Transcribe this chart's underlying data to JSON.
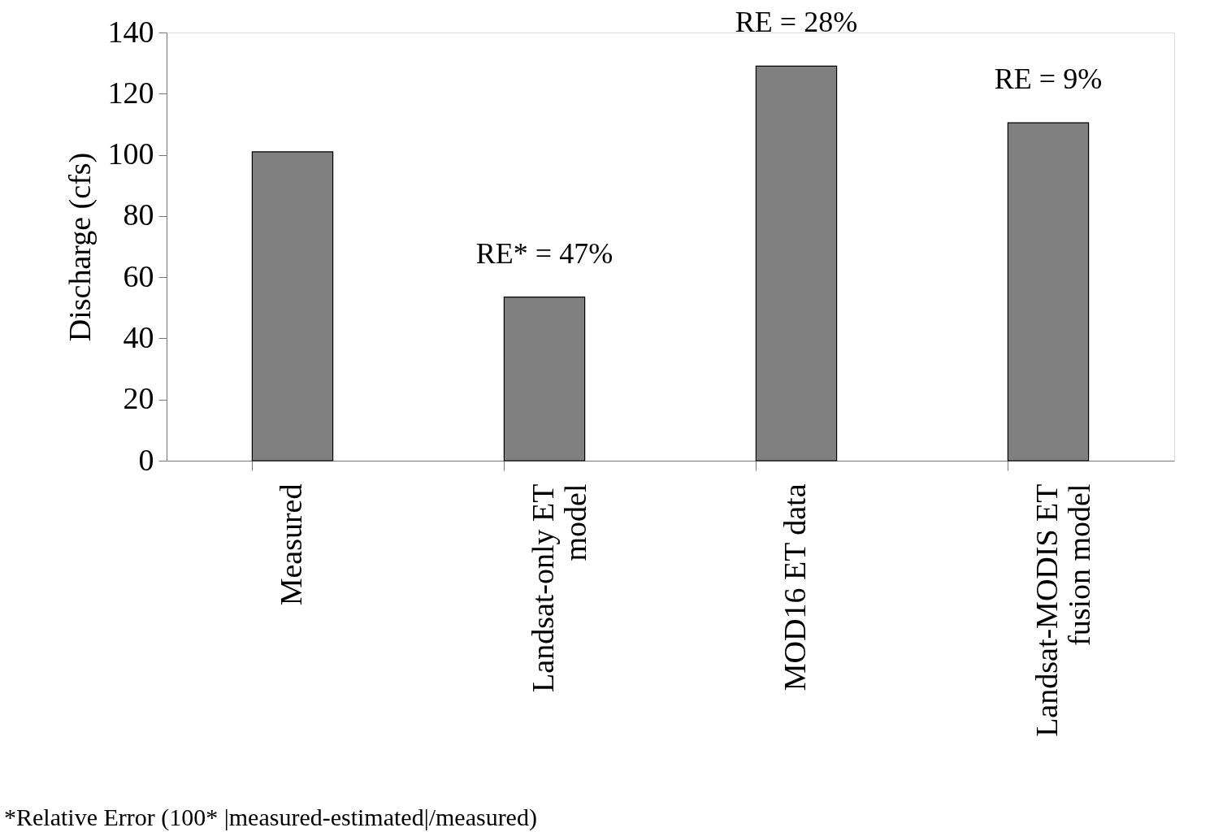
{
  "chart_data": {
    "type": "bar",
    "ylabel": "Discharge (cfs)",
    "categories": [
      "Measured",
      "Landsat-only ET model",
      "MOD16 ET data",
      "Landsat-MODIS ET fusion model"
    ],
    "values": [
      101,
      53.5,
      129,
      110.5
    ],
    "color": "#808080",
    "ylim": [
      0,
      140
    ],
    "yticks": [
      0,
      20,
      40,
      60,
      80,
      100,
      120,
      140
    ],
    "grid": false,
    "annotations": [
      "RE* = 47%",
      "RE = 28%",
      "RE = 9%",
      "*Relative Error (100* |measured-estimated|/measured)"
    ]
  }
}
